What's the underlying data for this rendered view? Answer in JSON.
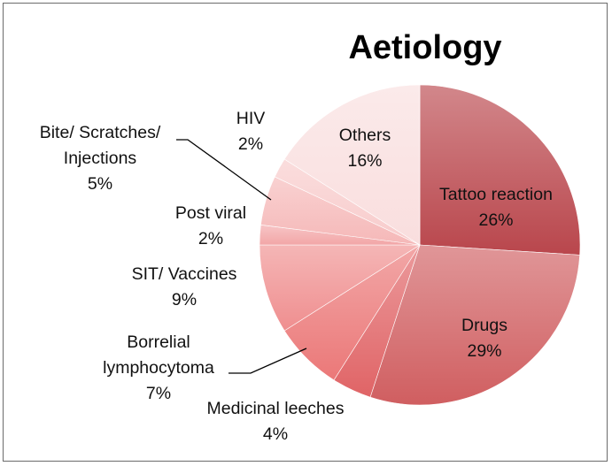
{
  "chart_data": {
    "type": "pie",
    "title": "Aetiology",
    "slices": [
      {
        "label": "Tattoo reaction",
        "value": 26,
        "value_label": "26%",
        "color": "#b9464c"
      },
      {
        "label": "Drugs",
        "value": 29,
        "value_label": "29%",
        "color": "#d05e60"
      },
      {
        "label": "Medicinal leeches",
        "value": 4,
        "value_label": "4%",
        "color": "#e06466"
      },
      {
        "label": "Borrelial lymphocytoma",
        "value": 7,
        "value_label": "7%",
        "color": "#eb7878"
      },
      {
        "label": "SIT/ Vaccines",
        "value": 9,
        "value_label": "9%",
        "color": "#ef8e8f"
      },
      {
        "label": "Post viral",
        "value": 2,
        "value_label": "2%",
        "color": "#f2a6a7"
      },
      {
        "label": "Bite/ Scratches/ Injections",
        "value": 5,
        "value_label": "5%",
        "color": "#f5b8b8"
      },
      {
        "label": "HIV",
        "value": 2,
        "value_label": "2%",
        "color": "#f8cbcb"
      },
      {
        "label": "Others",
        "value": 16,
        "value_label": "16%",
        "color": "#f9dede"
      }
    ],
    "legend": "none"
  }
}
